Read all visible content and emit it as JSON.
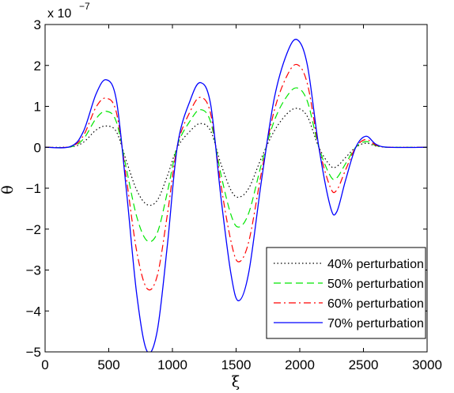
{
  "chart_data": {
    "type": "line",
    "title": "",
    "xlabel": "ξ",
    "ylabel": "θ",
    "xlim": [
      0,
      3000
    ],
    "ylim": [
      -5,
      3
    ],
    "x_ticks": [
      "0",
      "500",
      "1000",
      "1500",
      "2000",
      "2500",
      "3000"
    ],
    "y_ticks": [
      "−5",
      "−4",
      "−3",
      "−2",
      "−1",
      "0",
      "1",
      "2",
      "3"
    ],
    "y_exponent": {
      "base": "x 10",
      "power": "−7"
    },
    "grid": false,
    "legend": "bottom-right",
    "series": [
      {
        "name": "40% perturbation",
        "color": "#000000",
        "dash": "dotted",
        "points": [
          [
            0,
            0
          ],
          [
            200,
            0.01
          ],
          [
            300,
            0.12
          ],
          [
            400,
            0.42
          ],
          [
            480,
            0.52
          ],
          [
            560,
            0.38
          ],
          [
            640,
            -0.35
          ],
          [
            720,
            -1.05
          ],
          [
            800,
            -1.4
          ],
          [
            880,
            -1.3
          ],
          [
            960,
            -0.7
          ],
          [
            1040,
            0.0
          ],
          [
            1140,
            0.4
          ],
          [
            1220,
            0.58
          ],
          [
            1300,
            0.4
          ],
          [
            1380,
            -0.4
          ],
          [
            1460,
            -1.05
          ],
          [
            1520,
            -1.22
          ],
          [
            1600,
            -1.0
          ],
          [
            1700,
            -0.25
          ],
          [
            1800,
            0.4
          ],
          [
            1900,
            0.82
          ],
          [
            1980,
            0.95
          ],
          [
            2060,
            0.75
          ],
          [
            2150,
            0.0
          ],
          [
            2240,
            -0.45
          ],
          [
            2290,
            -0.47
          ],
          [
            2360,
            -0.25
          ],
          [
            2440,
            0.0
          ],
          [
            2520,
            0.1
          ],
          [
            2600,
            0.03
          ],
          [
            2700,
            0.0
          ],
          [
            3000,
            0
          ]
        ]
      },
      {
        "name": "50% perturbation",
        "color": "#00e600",
        "dash": "dashed",
        "points": [
          [
            0,
            0
          ],
          [
            200,
            0.01
          ],
          [
            300,
            0.2
          ],
          [
            400,
            0.7
          ],
          [
            480,
            0.88
          ],
          [
            560,
            0.62
          ],
          [
            640,
            -0.55
          ],
          [
            720,
            -1.7
          ],
          [
            800,
            -2.28
          ],
          [
            880,
            -2.1
          ],
          [
            960,
            -1.1
          ],
          [
            1040,
            0.05
          ],
          [
            1140,
            0.65
          ],
          [
            1220,
            0.92
          ],
          [
            1300,
            0.62
          ],
          [
            1380,
            -0.65
          ],
          [
            1460,
            -1.65
          ],
          [
            1520,
            -1.95
          ],
          [
            1600,
            -1.6
          ],
          [
            1700,
            -0.4
          ],
          [
            1800,
            0.65
          ],
          [
            1900,
            1.25
          ],
          [
            1980,
            1.45
          ],
          [
            2060,
            1.12
          ],
          [
            2150,
            0.0
          ],
          [
            2240,
            -0.7
          ],
          [
            2290,
            -0.75
          ],
          [
            2360,
            -0.4
          ],
          [
            2440,
            0.0
          ],
          [
            2520,
            0.14
          ],
          [
            2600,
            0.04
          ],
          [
            2700,
            0.0
          ],
          [
            3000,
            0
          ]
        ]
      },
      {
        "name": "60% perturbation",
        "color": "#ff0000",
        "dash": "dashdot",
        "points": [
          [
            0,
            0
          ],
          [
            200,
            0.02
          ],
          [
            300,
            0.28
          ],
          [
            400,
            0.98
          ],
          [
            480,
            1.2
          ],
          [
            560,
            0.85
          ],
          [
            640,
            -0.8
          ],
          [
            720,
            -2.55
          ],
          [
            800,
            -3.45
          ],
          [
            880,
            -3.15
          ],
          [
            960,
            -1.65
          ],
          [
            1040,
            0.05
          ],
          [
            1140,
            0.88
          ],
          [
            1220,
            1.22
          ],
          [
            1300,
            0.82
          ],
          [
            1380,
            -0.9
          ],
          [
            1460,
            -2.3
          ],
          [
            1520,
            -2.8
          ],
          [
            1600,
            -2.3
          ],
          [
            1700,
            -0.6
          ],
          [
            1800,
            0.9
          ],
          [
            1900,
            1.75
          ],
          [
            1980,
            2.02
          ],
          [
            2060,
            1.55
          ],
          [
            2150,
            0.0
          ],
          [
            2240,
            -0.98
          ],
          [
            2290,
            -1.05
          ],
          [
            2360,
            -0.55
          ],
          [
            2440,
            0.0
          ],
          [
            2520,
            0.19
          ],
          [
            2600,
            0.05
          ],
          [
            2700,
            0.0
          ],
          [
            3000,
            0
          ]
        ]
      },
      {
        "name": "70% perturbation",
        "color": "#0000ff",
        "dash": "solid",
        "points": [
          [
            0,
            0
          ],
          [
            200,
            0.02
          ],
          [
            300,
            0.38
          ],
          [
            400,
            1.3
          ],
          [
            480,
            1.65
          ],
          [
            560,
            1.15
          ],
          [
            640,
            -1.1
          ],
          [
            720,
            -3.6
          ],
          [
            800,
            -4.98
          ],
          [
            880,
            -4.5
          ],
          [
            960,
            -2.4
          ],
          [
            1040,
            0.05
          ],
          [
            1140,
            1.15
          ],
          [
            1220,
            1.58
          ],
          [
            1300,
            1.05
          ],
          [
            1380,
            -1.2
          ],
          [
            1460,
            -3.1
          ],
          [
            1520,
            -3.75
          ],
          [
            1600,
            -3.05
          ],
          [
            1700,
            -0.8
          ],
          [
            1800,
            1.2
          ],
          [
            1900,
            2.3
          ],
          [
            1980,
            2.63
          ],
          [
            2060,
            2.0
          ],
          [
            2150,
            0.0
          ],
          [
            2240,
            -1.45
          ],
          [
            2290,
            -1.58
          ],
          [
            2360,
            -0.8
          ],
          [
            2440,
            0.0
          ],
          [
            2520,
            0.27
          ],
          [
            2600,
            0.07
          ],
          [
            2700,
            0.0
          ],
          [
            3000,
            0
          ]
        ]
      }
    ]
  }
}
